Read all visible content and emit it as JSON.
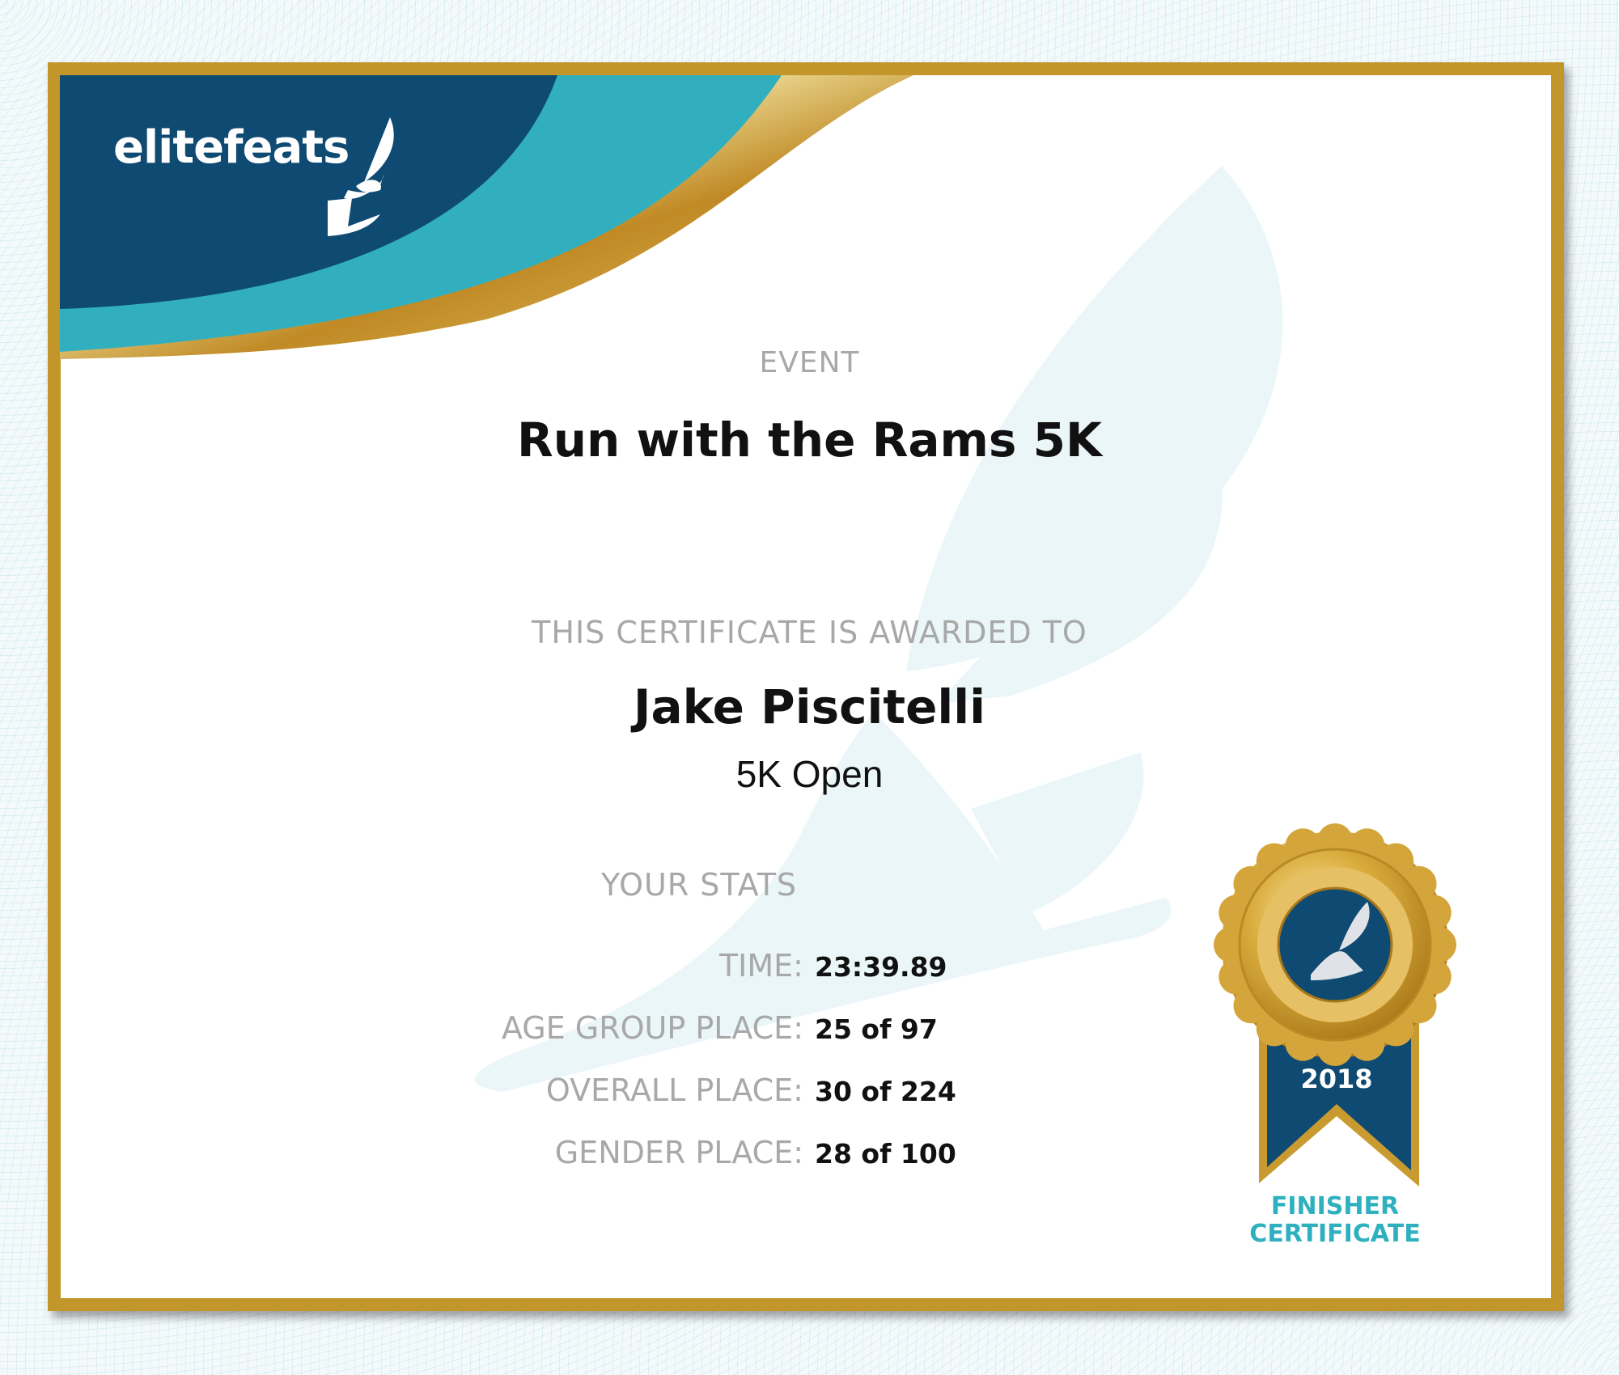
{
  "brand": {
    "logo_text": "elitefeats",
    "colors": {
      "navy": "#0f4a72",
      "teal": "#31afbf",
      "gold": "#c3962c"
    }
  },
  "event": {
    "label": "EVENT",
    "name": "Run with the Rams 5K"
  },
  "award": {
    "label": "THIS CERTIFICATE IS AWARDED TO",
    "recipient": "Jake Piscitelli",
    "division": "5K Open"
  },
  "stats": {
    "heading": "YOUR STATS",
    "rows": [
      {
        "label": "TIME:",
        "value": "23:39.89"
      },
      {
        "label": "AGE GROUP PLACE:",
        "value": "25 of 97"
      },
      {
        "label": "OVERALL PLACE:",
        "value": "30 of 224"
      },
      {
        "label": "GENDER PLACE:",
        "value": "28 of 100"
      }
    ]
  },
  "medal": {
    "year": "2018",
    "caption_line1": "FINISHER",
    "caption_line2": "CERTIFICATE",
    "icon": "winged-foot-icon"
  }
}
